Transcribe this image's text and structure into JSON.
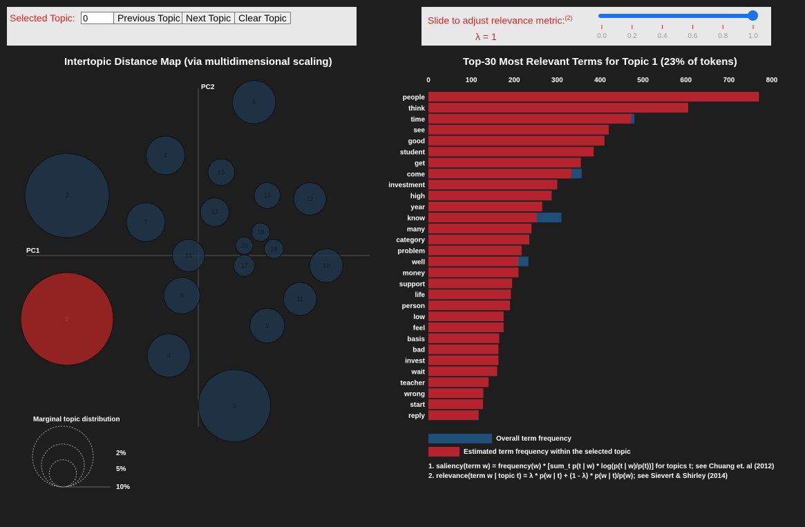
{
  "topic_panel": {
    "label": "Selected Topic:",
    "value": "0",
    "prev_label": "Previous Topic",
    "next_label": "Next Topic",
    "clear_label": "Clear Topic"
  },
  "slider_panel": {
    "label": "Slide to adjust relevance metric:",
    "footnote": "(2)",
    "lambda_text": "λ = 1",
    "lambda_value": 1,
    "ticks": [
      "0.0",
      "0.2",
      "0.4",
      "0.6",
      "0.8",
      "1.0"
    ]
  },
  "colors": {
    "topic_circle": "#1f3a52",
    "selected_topic": "#a02323",
    "overall_bar": "#1f4e79",
    "topic_bar": "#b5232f",
    "label_red": "#d62728"
  },
  "chart_data": [
    {
      "type": "scatter",
      "title": "Intertopic Distance Map (via multidimensional scaling)",
      "xlabel": "PC1",
      "ylabel": "PC2",
      "selected_topic": 1,
      "topics": [
        {
          "id": "1",
          "x": -0.4,
          "y": -0.19,
          "size": 23
        },
        {
          "id": "2",
          "x": -0.4,
          "y": 0.18,
          "size": 19
        },
        {
          "id": "3",
          "x": 0.11,
          "y": -0.45,
          "size": 14
        },
        {
          "id": "4",
          "x": -0.09,
          "y": -0.3,
          "size": 5
        },
        {
          "id": "5",
          "x": 0.17,
          "y": 0.46,
          "size": 5
        },
        {
          "id": "6",
          "x": -0.1,
          "y": 0.3,
          "size": 4
        },
        {
          "id": "7",
          "x": -0.16,
          "y": 0.1,
          "size": 4
        },
        {
          "id": "8",
          "x": -0.05,
          "y": -0.12,
          "size": 3.5
        },
        {
          "id": "9",
          "x": 0.21,
          "y": -0.21,
          "size": 3.2
        },
        {
          "id": "10",
          "x": 0.39,
          "y": -0.03,
          "size": 3.0
        },
        {
          "id": "11",
          "x": 0.31,
          "y": -0.13,
          "size": 2.9
        },
        {
          "id": "12",
          "x": 0.34,
          "y": 0.17,
          "size": 2.8
        },
        {
          "id": "13",
          "x": 0.05,
          "y": 0.13,
          "size": 2.2
        },
        {
          "id": "14",
          "x": -0.03,
          "y": 0.0,
          "size": 2.8
        },
        {
          "id": "15",
          "x": 0.07,
          "y": 0.25,
          "size": 1.9
        },
        {
          "id": "16",
          "x": 0.21,
          "y": 0.18,
          "size": 1.8
        },
        {
          "id": "17",
          "x": 0.14,
          "y": -0.03,
          "size": 1.2
        },
        {
          "id": "18",
          "x": 0.23,
          "y": 0.02,
          "size": 1.0
        },
        {
          "id": "19",
          "x": 0.19,
          "y": 0.07,
          "size": 0.9
        },
        {
          "id": "20",
          "x": 0.14,
          "y": 0.03,
          "size": 0.8
        }
      ],
      "legend": {
        "title": "Marginal topic distribution",
        "items": [
          {
            "label": "2%",
            "value": 2
          },
          {
            "label": "5%",
            "value": 5
          },
          {
            "label": "10%",
            "value": 10
          }
        ]
      }
    },
    {
      "type": "bar",
      "title": "Top-30 Most Relevant Terms for Topic 1 (23% of tokens)",
      "xlim": [
        0,
        800
      ],
      "xticks": [
        0,
        100,
        200,
        300,
        400,
        500,
        600,
        700,
        800
      ],
      "categories": [
        "people",
        "think",
        "time",
        "see",
        "good",
        "student",
        "get",
        "come",
        "investment",
        "high",
        "year",
        "know",
        "many",
        "category",
        "problem",
        "well",
        "money",
        "support",
        "life",
        "person",
        "low",
        "feel",
        "basis",
        "bad",
        "invest",
        "wait",
        "teacher",
        "wrong",
        "start",
        "reply"
      ],
      "series": [
        {
          "name": "Overall term frequency",
          "values": [
            770,
            605,
            480,
            420,
            410,
            385,
            355,
            357,
            300,
            287,
            265,
            310,
            240,
            235,
            217,
            233,
            210,
            195,
            192,
            190,
            175,
            175,
            165,
            163,
            163,
            160,
            140,
            128,
            127,
            117
          ]
        },
        {
          "name": "Estimated term frequency within the selected topic",
          "values": [
            770,
            605,
            472,
            420,
            410,
            385,
            355,
            333,
            300,
            287,
            265,
            252,
            240,
            235,
            217,
            210,
            210,
            195,
            192,
            190,
            175,
            175,
            165,
            163,
            163,
            160,
            140,
            128,
            127,
            117
          ]
        }
      ],
      "notes": [
        "1. saliency(term w) = frequency(w) * [sum_t p(t | w) * log(p(t | w)/p(t))] for topics t; see Chuang et. al (2012)",
        "2. relevance(term w | topic t) = λ * p(w | t) + (1 - λ) * p(w | t)/p(w); see Sievert & Shirley (2014)"
      ]
    }
  ]
}
